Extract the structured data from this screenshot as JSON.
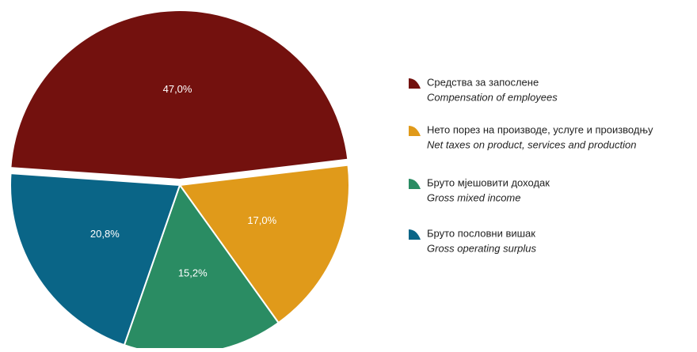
{
  "chart_data": {
    "type": "pie",
    "categories": [
      "Средства за запослене",
      "Нето порез на производе, услуге и производњу",
      "Бруто мјешовити доходак",
      "Бруто пословни вишак"
    ],
    "categories_en": [
      "Compensation of employees",
      "Net taxes on product, services and production",
      "Gross mixed income",
      "Gross operating surplus"
    ],
    "values": [
      47.0,
      17.0,
      15.2,
      20.8
    ],
    "value_labels": [
      "47,0%",
      "17,0%",
      "15,2%",
      "20,8%"
    ],
    "colors": [
      "#73110e",
      "#e09a1a",
      "#2a8c63",
      "#0a6587"
    ],
    "legend": "right"
  }
}
